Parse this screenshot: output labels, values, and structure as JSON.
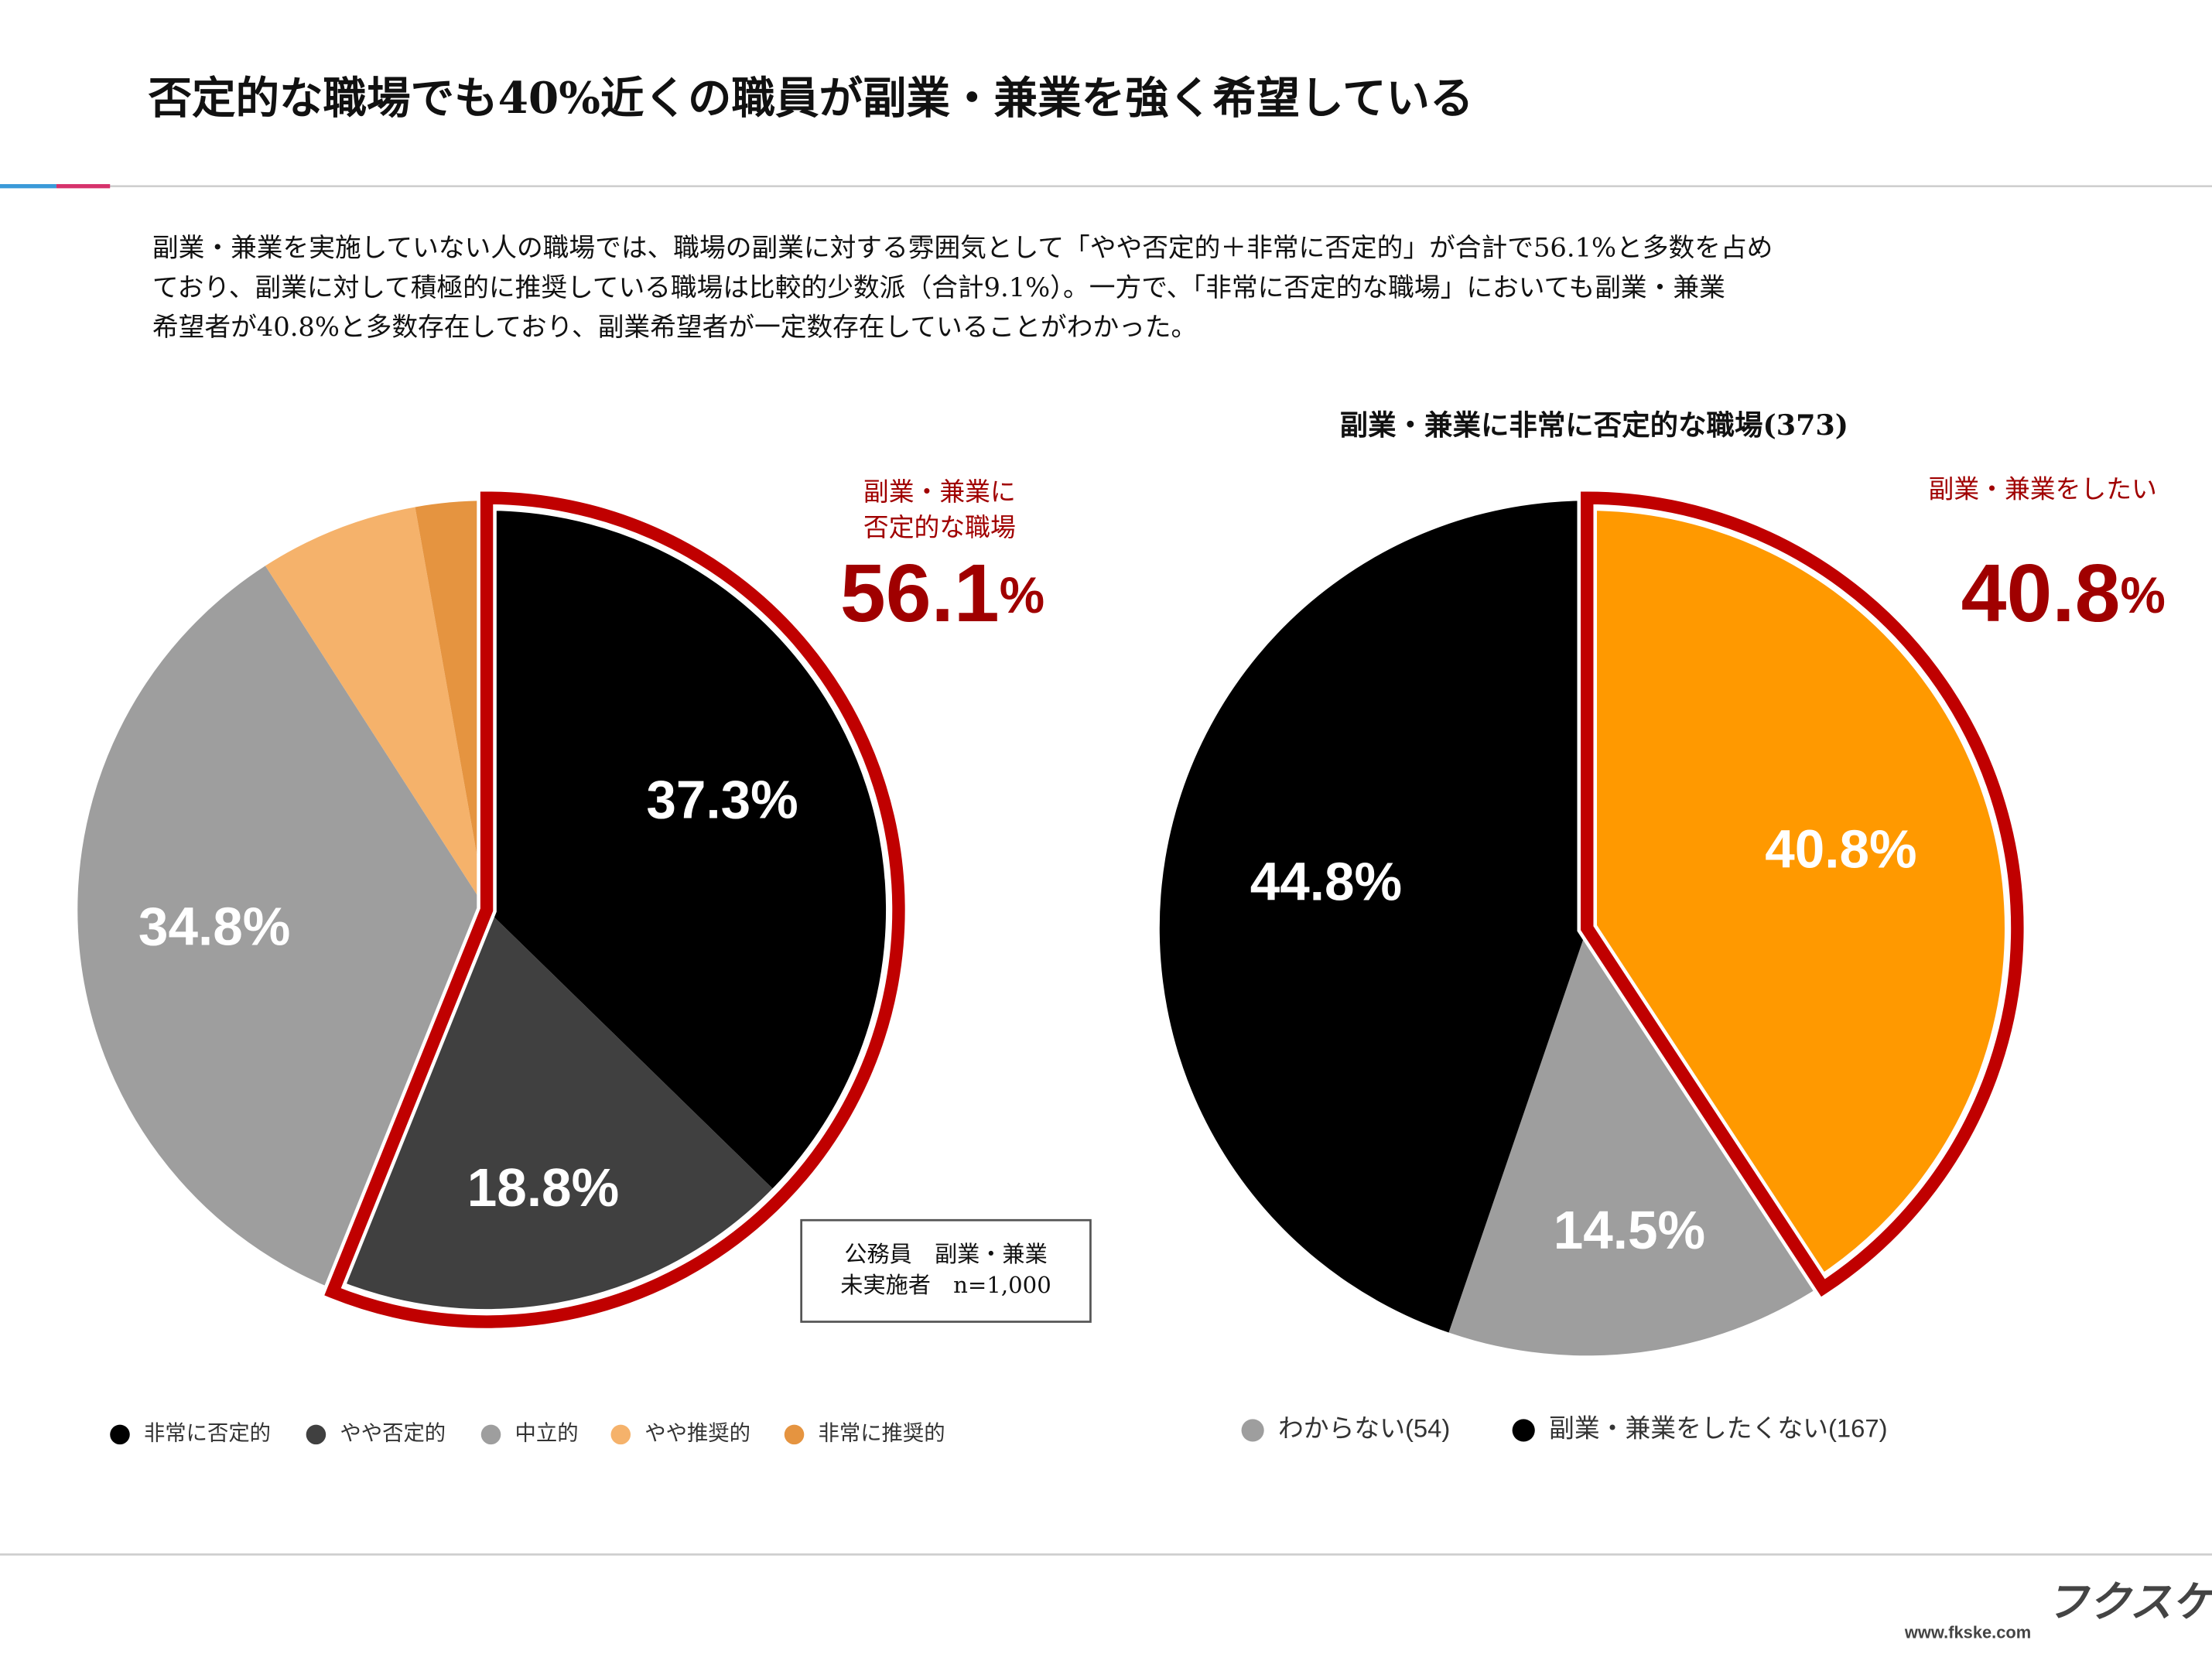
{
  "header": {
    "title": "否定的な職場でも40%近くの職員が副業・兼業を強く希望している"
  },
  "description": {
    "lines": [
      "副業・兼業を実施していない人の職場では、職場の副業に対する雰囲気として「やや否定的＋非常に否定的」が合計で56.1%と多数を占め",
      "ており、副業に対して積極的に推奨している職場は比較的少数派（合計9.1%）。一方で、「非常に否定的な職場」においても副業・兼業",
      "希望者が40.8%と多数存在しており、副業希望者が一定数存在していることがわかった。"
    ]
  },
  "chart_data": [
    {
      "type": "pie",
      "categories": [
        "非常に否定的",
        "やや否定的",
        "中立的",
        "やや推奨的",
        "非常に推奨的"
      ],
      "values": [
        37.3,
        18.8,
        34.8,
        6.3,
        2.8
      ],
      "value_labels": [
        "37.3%",
        "18.8%",
        "34.8%",
        null,
        null
      ],
      "colors": [
        "#000000",
        "#404040",
        "#9e9e9e",
        "#f5b26b",
        "#e59440"
      ],
      "outlined": [
        0,
        1
      ],
      "outline_color": "#c00000",
      "highlight": {
        "label_lines": [
          "副業・兼業に",
          "否定的な職場"
        ],
        "value": 56.1,
        "unit": "%"
      },
      "note": [
        "公務員　副業・兼業",
        "未実施者　n=1,000"
      ]
    },
    {
      "type": "pie",
      "title": "副業・兼業に非常に否定的な職場(373)",
      "categories": [
        null,
        "わからない(54)",
        "副業・兼業をしたくない(167)"
      ],
      "values": [
        40.8,
        14.5,
        44.8
      ],
      "value_labels": [
        "40.8%",
        "14.5%",
        "44.8%"
      ],
      "colors": [
        "#ff9900",
        "#9e9e9e",
        "#000000"
      ],
      "outlined": [
        0
      ],
      "outline_color": "#c00000",
      "highlight": {
        "label_lines": [
          "副業・兼業をしたい"
        ],
        "value": 40.8,
        "unit": "%"
      }
    }
  ],
  "footer": {
    "brand": "フクスケ",
    "url": "www.fkske.com"
  }
}
